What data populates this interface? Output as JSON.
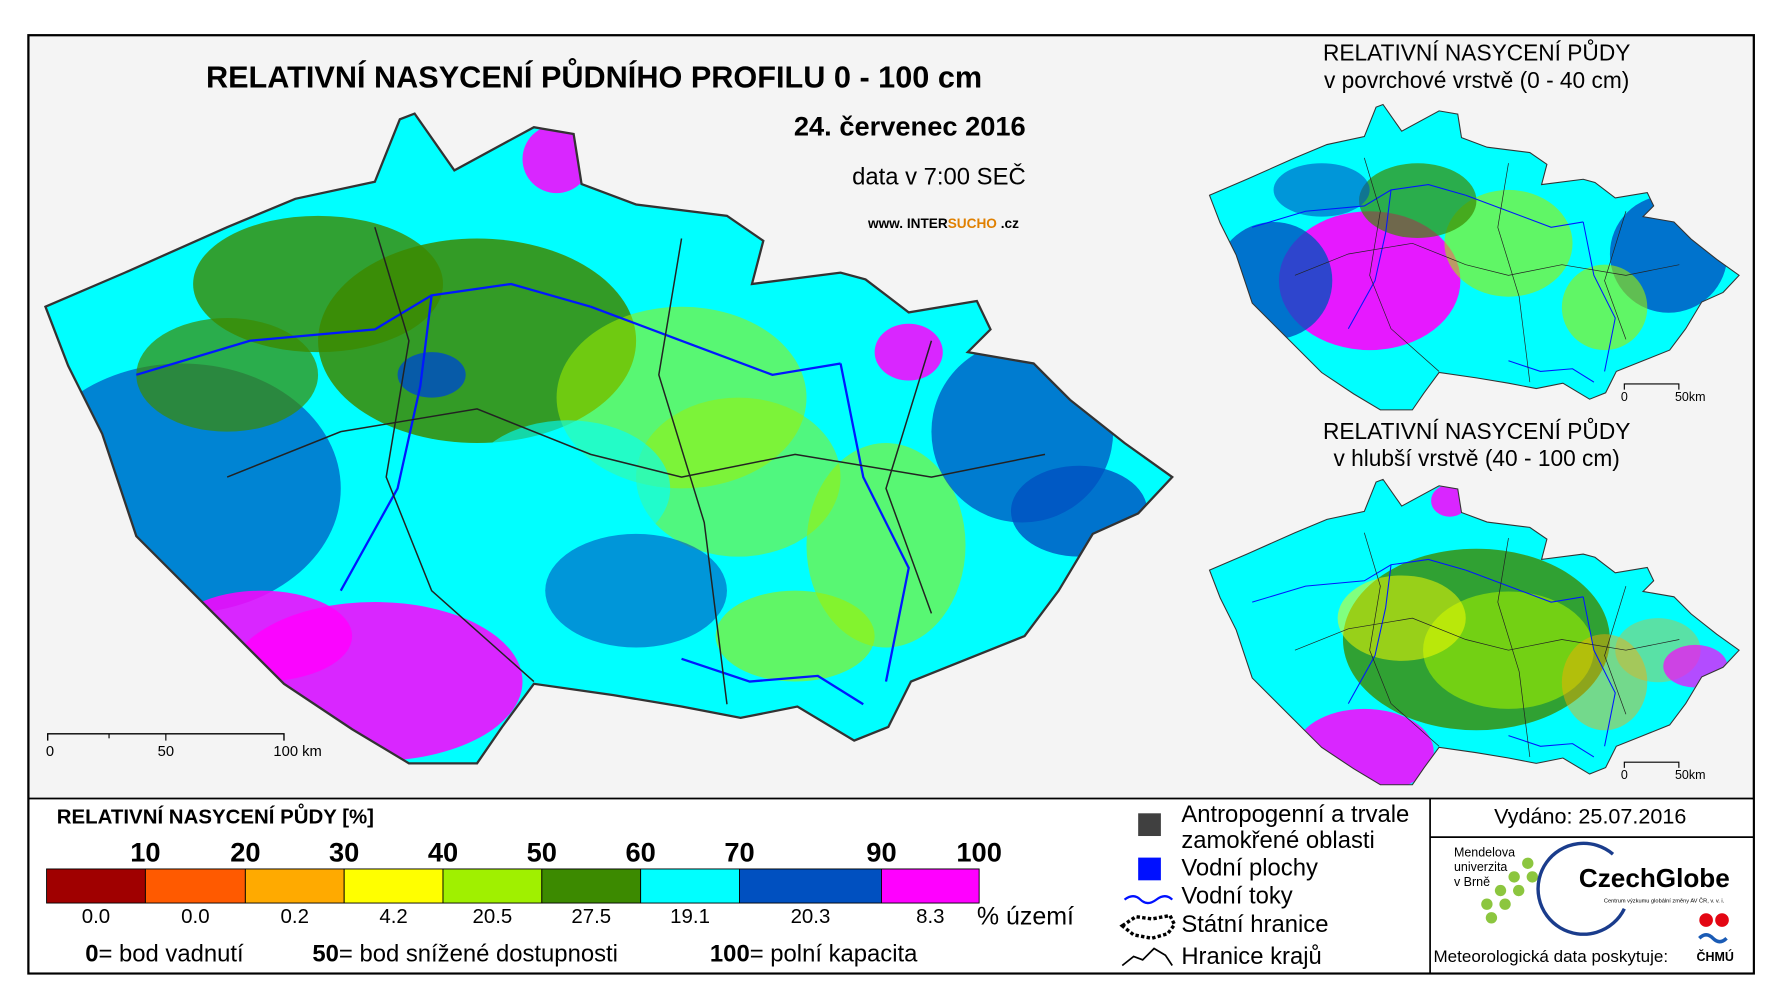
{
  "title": "RELATIVNÍ NASYCENÍ PŮDNÍHO PROFILU 0 - 100 cm",
  "date": "24. červenec 2016",
  "data_time": "data v 7:00 SEČ",
  "website": [
    "www. INTER",
    "SUCHO",
    " .cz"
  ],
  "main_scale": [
    "0",
    "50",
    "100 km"
  ],
  "insets": [
    {
      "title_lines": [
        "RELATIVNÍ NASYCENÍ PŮDY",
        "v povrchové vrstvě (0 - 40 cm)"
      ],
      "scale": [
        "0",
        "50km"
      ]
    },
    {
      "title_lines": [
        "RELATIVNÍ NASYCENÍ PŮDY",
        "v hlubší vrstvě (40 - 100 cm)"
      ],
      "scale": [
        "0",
        "50km"
      ]
    }
  ],
  "legend": {
    "title": "RELATIVNÍ NASYCENÍ PŮDY [%]",
    "classes": [
      {
        "upper": "10",
        "color": "#a00000",
        "share": "0.0"
      },
      {
        "upper": "20",
        "color": "#ff5a00",
        "share": "0.0"
      },
      {
        "upper": "30",
        "color": "#ffaa00",
        "share": "0.2"
      },
      {
        "upper": "40",
        "color": "#ffff00",
        "share": "4.2"
      },
      {
        "upper": "50",
        "color": "#a0f000",
        "share": "20.5"
      },
      {
        "upper": "60",
        "color": "#3c8a00",
        "share": "27.5"
      },
      {
        "upper": "70",
        "color": "#00ffff",
        "share": "19.1"
      },
      {
        "upper": "90",
        "color": "#0050c0",
        "share": "20.3"
      },
      {
        "upper": "100",
        "color": "#ff00ff",
        "share": "8.3"
      }
    ],
    "share_unit": "% území",
    "notes": [
      {
        "value": "0",
        "text": "= bod vadnutí"
      },
      {
        "value": "50",
        "text": "= bod snížené dostupnosti"
      },
      {
        "value": "100",
        "text": "= polní kapacita"
      }
    ]
  },
  "symbols": [
    {
      "lines": [
        "Antropogenní a trvale",
        "zamokřené oblasti"
      ],
      "color": "#404040"
    },
    {
      "lines": [
        "Vodní plochy"
      ],
      "color": "#0010ff"
    },
    {
      "lines": [
        "Vodní toky"
      ],
      "color": "#0010ff"
    },
    {
      "lines": [
        "Státní hranice"
      ],
      "color": "#000000"
    },
    {
      "lines": [
        "Hranice krajů"
      ],
      "color": "#000000"
    }
  ],
  "issued": "Vydáno: 25.07.2016",
  "providers": {
    "mendel": [
      "Mendelova",
      "univerzita",
      "v Brně"
    ],
    "czechglobe": "CzechGlobe",
    "czechglobe_sub": "Centrum výzkumu globální změny AV ČR, v. v. i.",
    "met_data": "Meteorologická data poskytuje:",
    "chmu": "ČHMÚ"
  }
}
